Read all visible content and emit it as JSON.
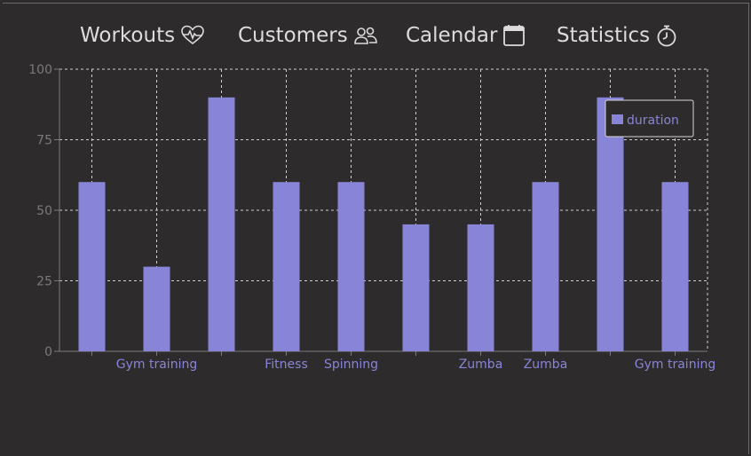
{
  "nav": {
    "items": [
      {
        "label": "Workouts",
        "icon": "heart-pulse-icon"
      },
      {
        "label": "Customers",
        "icon": "people-icon"
      },
      {
        "label": "Calendar",
        "icon": "calendar-icon"
      },
      {
        "label": "Statistics",
        "icon": "stopwatch-icon"
      }
    ]
  },
  "colors": {
    "background": "#2e2b2c",
    "bar": "#8884d8",
    "nav_text": "#dcdcdc",
    "axis_tick": "#7a7a7a",
    "grid": "#cfcfcf"
  },
  "chart_data": {
    "type": "bar",
    "categories": [
      "",
      "Gym training",
      "",
      "Fitness",
      "Spinning",
      "",
      "Zumba",
      "Zumba",
      "",
      "Gym training"
    ],
    "series": [
      {
        "name": "duration",
        "values": [
          60,
          30,
          90,
          60,
          60,
          45,
          45,
          60,
          90,
          60
        ]
      }
    ],
    "yticks": [
      0,
      25,
      50,
      75,
      100
    ],
    "ylim": [
      0,
      100
    ],
    "grid": true,
    "legend_position": "top-right"
  }
}
